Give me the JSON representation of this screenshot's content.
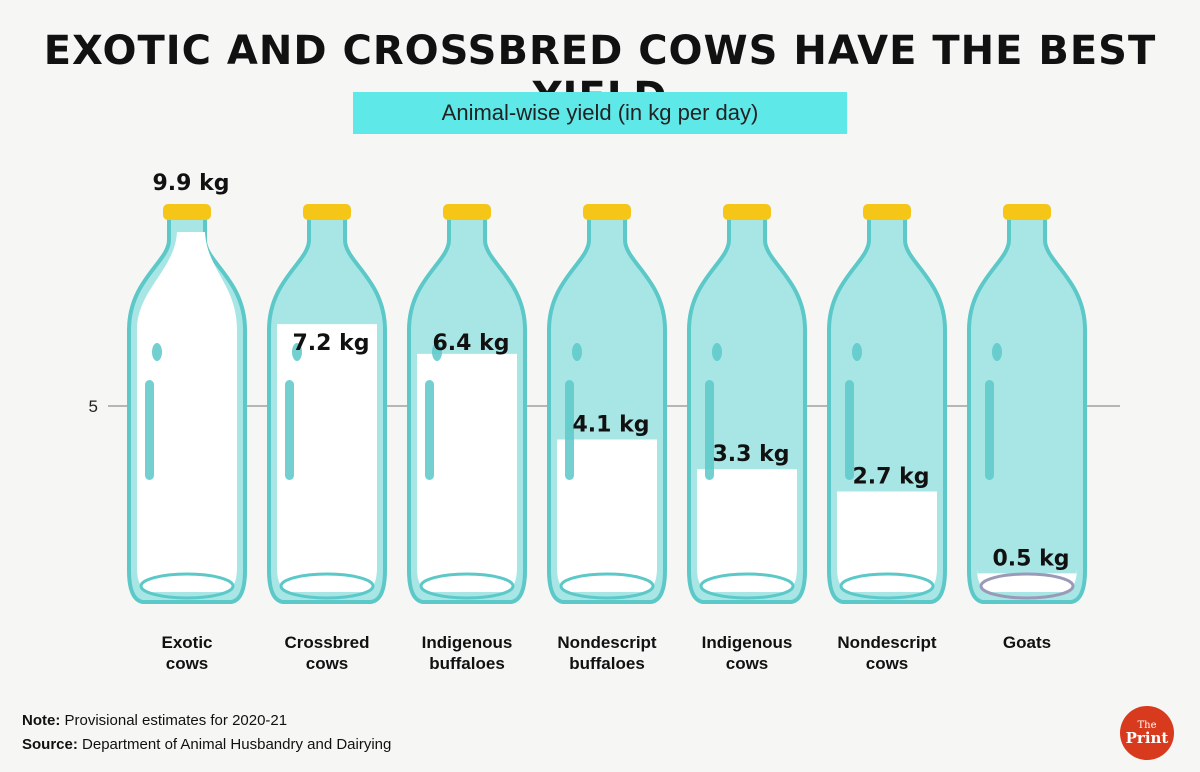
{
  "title": "EXOTIC AND CROSSBRED COWS HAVE THE BEST YIELD",
  "subtitle": "Animal-wise yield (in kg per day)",
  "note_label": "Note:",
  "note_text": "Provisional estimates for 2020-21",
  "source_label": "Source:",
  "source_text": "Department of Animal Husbandry and Dairying",
  "logo": {
    "line1": "The",
    "line2": "Print"
  },
  "colors": {
    "bottle_glass": "#a8e6e6",
    "bottle_outline": "#5cc8c8",
    "milk": "#ffffff",
    "cap": "#f5c518",
    "accent_box": "#5ee8e8"
  },
  "chart_data": {
    "type": "bar",
    "style": "milk-bottles",
    "categories": [
      [
        "Exotic",
        "cows"
      ],
      [
        "Crossbred",
        "cows"
      ],
      [
        "Indigenous",
        "buffaloes"
      ],
      [
        "Nondescript",
        "buffaloes"
      ],
      [
        "Indigenous",
        "cows"
      ],
      [
        "Nondescript",
        "cows"
      ],
      [
        "Goats"
      ]
    ],
    "values": [
      9.9,
      7.2,
      6.4,
      4.1,
      3.3,
      2.7,
      0.5
    ],
    "value_labels": [
      "9.9 kg",
      "7.2 kg",
      "6.4 kg",
      "4.1 kg",
      "3.3 kg",
      "2.7 kg",
      "0.5 kg"
    ],
    "yticks": [
      5
    ],
    "ylim": [
      0,
      10
    ],
    "grid": true
  }
}
